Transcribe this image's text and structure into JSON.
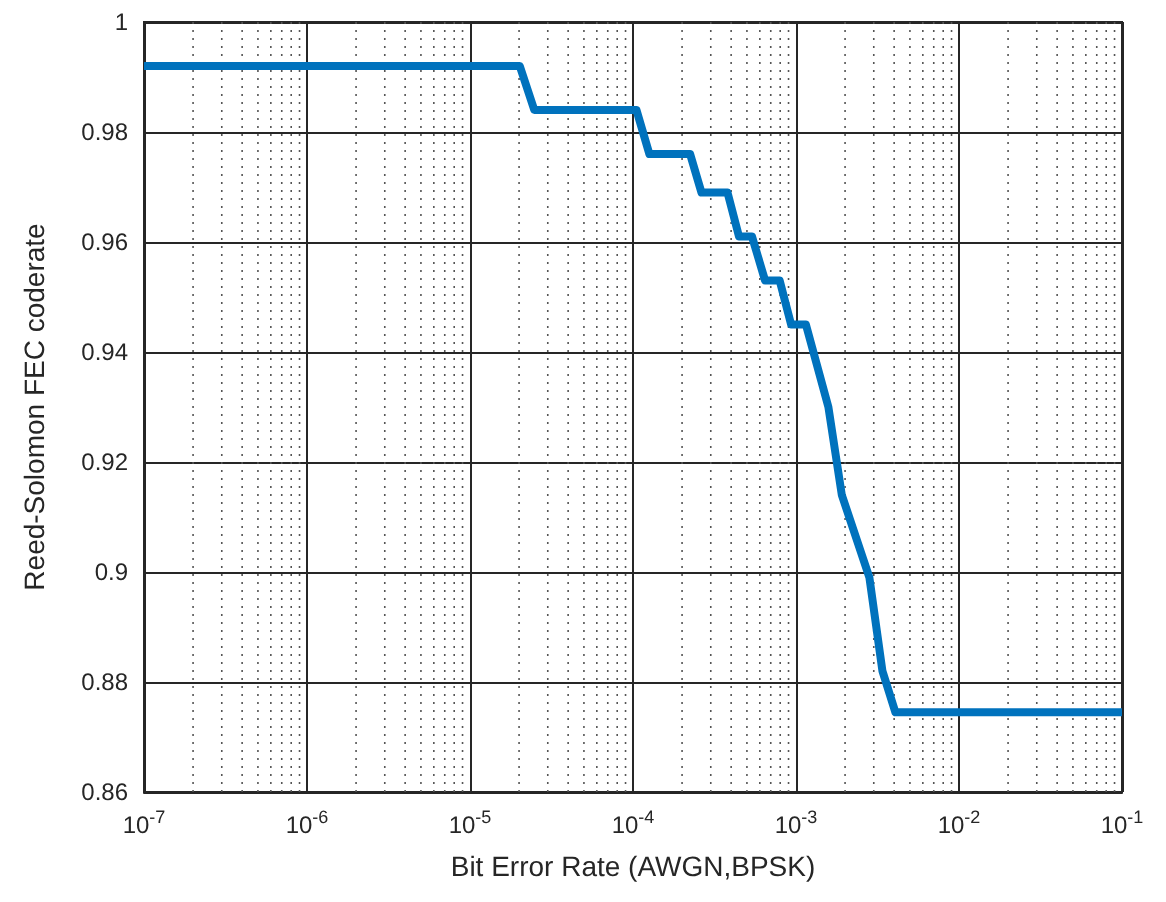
{
  "chart_data": {
    "type": "line",
    "xlabel": "Bit Error Rate (AWGN,BPSK)",
    "ylabel": "Reed-Solomon FEC coderate",
    "log": "x",
    "grid": true,
    "marker": "none",
    "line_style": "solid",
    "xlim": [
      1e-07,
      0.1
    ],
    "ylim": [
      0.86,
      1
    ],
    "xticks": [
      {
        "value": 1e-07,
        "label": "10$^{-7}$"
      },
      {
        "value": 1e-06,
        "label": "10$^{-6}$"
      },
      {
        "value": 1e-05,
        "label": "10$^{-5}$"
      },
      {
        "value": 0.0001,
        "label": "10$^{-4}$"
      },
      {
        "value": 0.001,
        "label": "10$^{-3}$"
      },
      {
        "value": 0.01,
        "label": "10$^{-2}$"
      },
      {
        "value": 0.1,
        "label": "10$^{-1}$"
      }
    ],
    "yticks": [
      0.86,
      0.88,
      0.9,
      0.92,
      0.94,
      0.96,
      0.98,
      1
    ],
    "series": [
      {
        "color": "#0072bd",
        "x": [
          1e-07,
          2.02e-05,
          2.48e-05,
          0.000105,
          0.000126,
          0.000224,
          0.000263,
          0.00038,
          0.000447,
          0.000537,
          0.000646,
          0.000794,
          0.000933,
          0.00115,
          0.00158,
          0.00191,
          0.00282,
          0.00339,
          0.00407,
          0.1
        ],
        "values": [
          0.992,
          0.992,
          0.984,
          0.984,
          0.976,
          0.976,
          0.969,
          0.969,
          0.961,
          0.961,
          0.953,
          0.953,
          0.945,
          0.945,
          0.93,
          0.914,
          0.899,
          0.882,
          0.8745,
          0.8745
        ]
      }
    ]
  }
}
